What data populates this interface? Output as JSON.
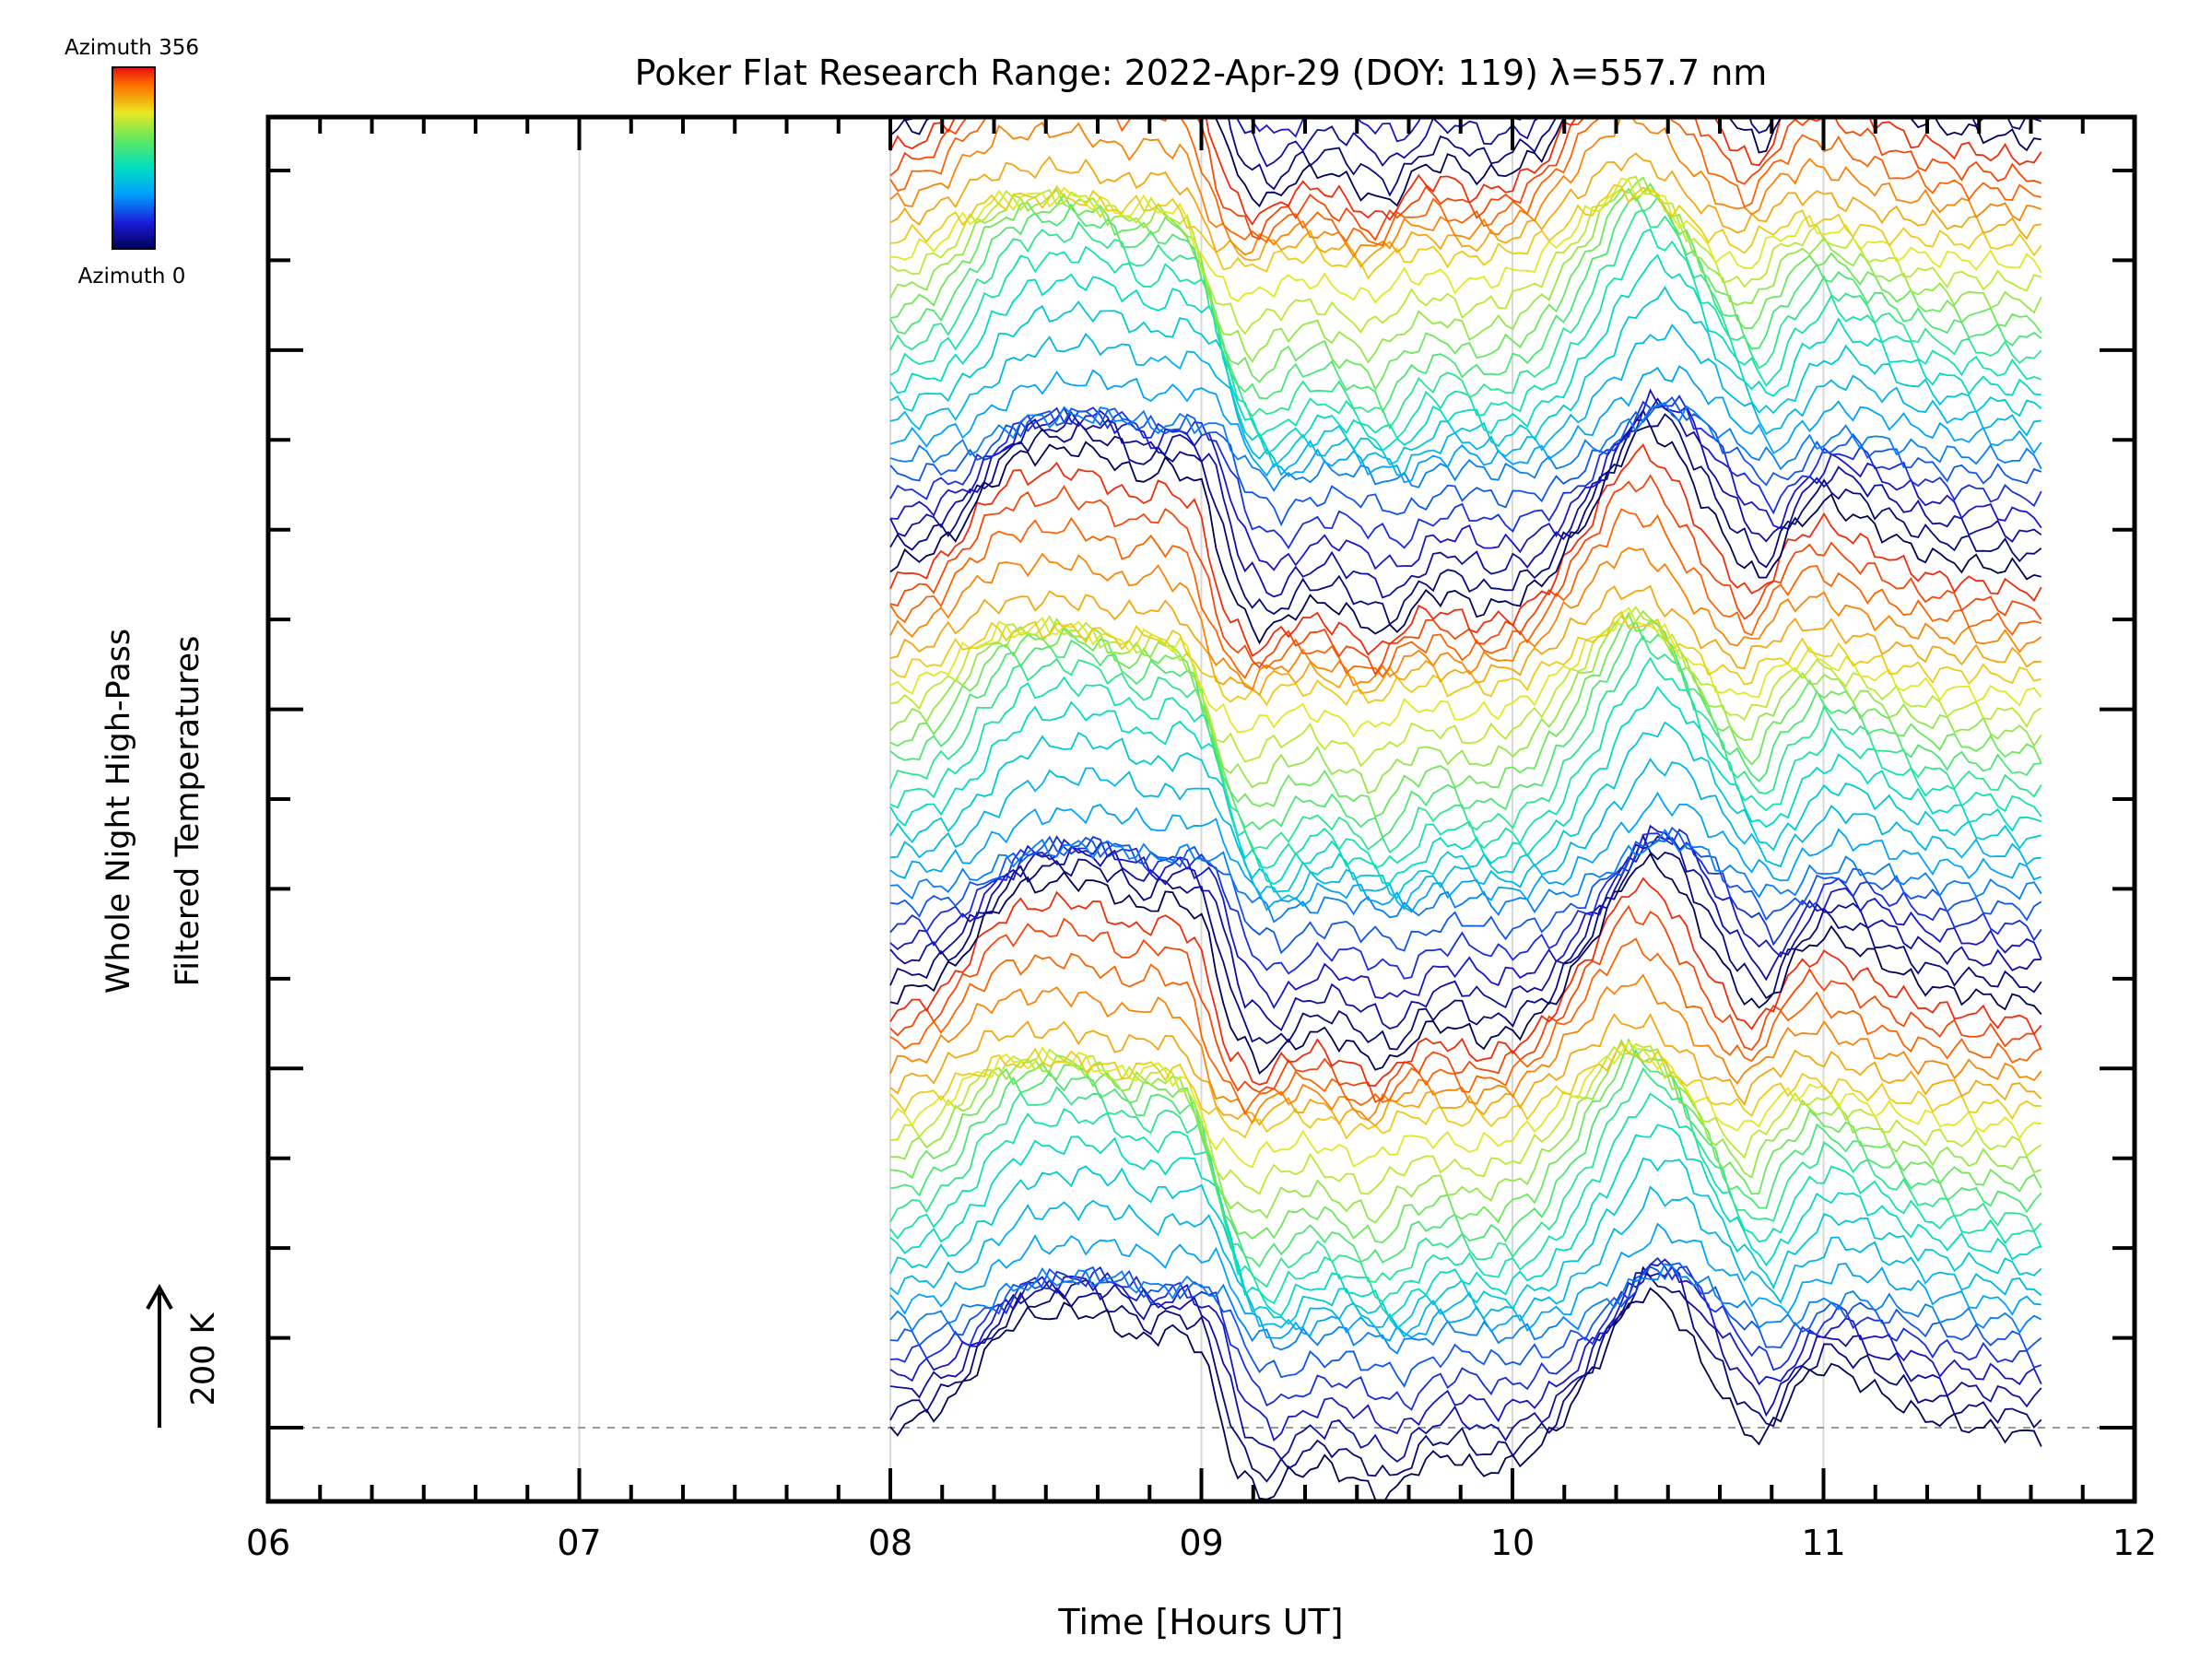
{
  "chart_data": {
    "type": "line",
    "title": "Poker Flat Research Range: 2022-Apr-29 (DOY: 119) λ=557.7 nm",
    "xlabel": "Time [Hours UT]",
    "ylabel": [
      "Whole Night High-Pass",
      "Filtered Temperatures"
    ],
    "xlim": [
      6,
      12
    ],
    "xticks": [
      "06",
      "07",
      "08",
      "09",
      "10",
      "11",
      "12"
    ],
    "scale_bar": {
      "label": "200 K",
      "value_K": 200
    },
    "colorbar": {
      "top_label": "Azimuth 356",
      "bottom_label": "Azimuth 0",
      "azimuth_range": [
        0,
        356
      ],
      "colormap": [
        "#00005a",
        "#1a1ad8",
        "#00a0ff",
        "#00e0c0",
        "#60e860",
        "#e8e820",
        "#ff7000",
        "#e81010"
      ]
    },
    "grid": {
      "vertical_at_hours": [
        7,
        8,
        9,
        10,
        11
      ],
      "baseline_dashed": true
    },
    "data_window_hours": [
      8.0,
      11.7
    ],
    "series_groups": 6,
    "traces_per_group": 24,
    "group_offset_K": 480,
    "trace_offset_K": 20,
    "wave_component": {
      "hours": [
        8.0,
        8.1,
        8.2,
        8.3,
        8.4,
        8.5,
        8.6,
        8.7,
        8.8,
        8.9,
        9.0,
        9.1,
        9.2,
        9.3,
        9.4,
        9.5,
        9.6,
        9.7,
        9.8,
        9.9,
        10.0,
        10.1,
        10.2,
        10.3,
        10.4,
        10.5,
        10.6,
        10.7,
        10.8,
        10.9,
        11.0,
        11.1,
        11.2,
        11.3,
        11.4,
        11.5,
        11.6,
        11.7
      ],
      "values_K": [
        0,
        10,
        30,
        80,
        120,
        125,
        130,
        120,
        95,
        110,
        90,
        -40,
        -80,
        -50,
        -40,
        -60,
        -80,
        -40,
        -30,
        -50,
        -40,
        -20,
        30,
        90,
        150,
        140,
        80,
        20,
        -20,
        40,
        70,
        55,
        35,
        15,
        5,
        0,
        -5,
        -10
      ]
    }
  }
}
